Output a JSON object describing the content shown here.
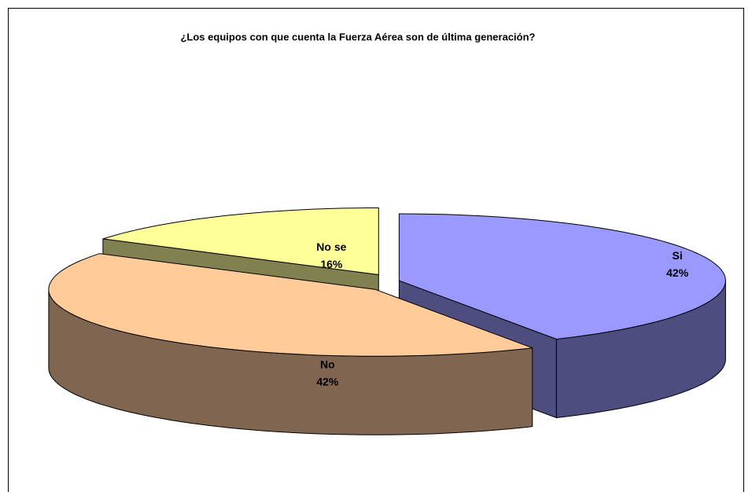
{
  "chart_data": {
    "type": "pie",
    "title": "¿Los equipos con que cuenta la Fuerza Aérea son de última generación?",
    "categories": [
      "Si",
      "No",
      "No se"
    ],
    "values": [
      42,
      42,
      16
    ],
    "value_labels": [
      "42%",
      "42%",
      "16%"
    ],
    "colors": [
      "#9999ff",
      "#ffcc99",
      "#ffff99"
    ],
    "side_colors": [
      "#4d4d80",
      "#806650",
      "#808050"
    ],
    "three_d": true
  }
}
